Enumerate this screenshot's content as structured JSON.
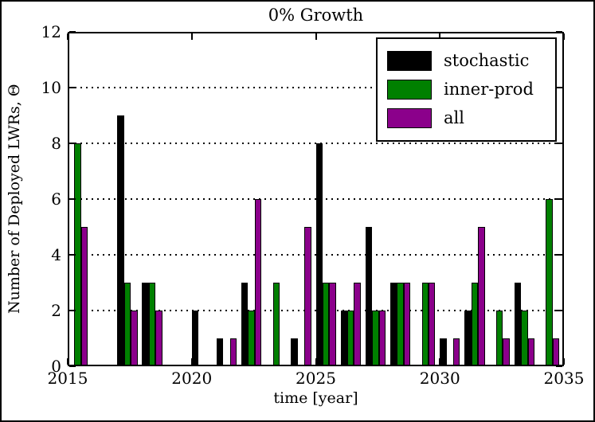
{
  "figure": {
    "background": "#ffffff",
    "frame_color": "#000000"
  },
  "chart_data": {
    "type": "bar",
    "title": "0% Growth",
    "xlabel": "time [year]",
    "ylabel": "Number of Deployed LWRs, Θ",
    "xlim": [
      2015,
      2035
    ],
    "ylim": [
      0,
      12
    ],
    "x_ticks": [
      2015,
      2020,
      2025,
      2030,
      2035
    ],
    "y_ticks": [
      0,
      2,
      4,
      6,
      8,
      10,
      12
    ],
    "grid_y": [
      2,
      4,
      6,
      8,
      10
    ],
    "grid_style": "dotted",
    "legend_position": "upper right",
    "bar_width_years": 0.27,
    "categories": [
      2015,
      2016,
      2017,
      2018,
      2019,
      2020,
      2021,
      2022,
      2023,
      2024,
      2025,
      2026,
      2027,
      2028,
      2029,
      2030,
      2031,
      2032,
      2033,
      2034
    ],
    "series": [
      {
        "name": "stochastic",
        "color": "#000000",
        "values": [
          0,
          0,
          9,
          3,
          0,
          2,
          1,
          3,
          0,
          1,
          8,
          2,
          5,
          3,
          0,
          1,
          2,
          0,
          3,
          0
        ]
      },
      {
        "name": "inner-prod",
        "color": "#008000",
        "values": [
          8,
          0,
          3,
          3,
          0,
          0,
          0,
          2,
          3,
          0,
          3,
          2,
          2,
          3,
          3,
          0,
          3,
          2,
          2,
          6
        ]
      },
      {
        "name": "all",
        "color": "#8B008B",
        "values": [
          5,
          0,
          2,
          2,
          0,
          0,
          1,
          6,
          0,
          5,
          3,
          3,
          2,
          3,
          3,
          1,
          5,
          1,
          1,
          1
        ]
      }
    ]
  }
}
